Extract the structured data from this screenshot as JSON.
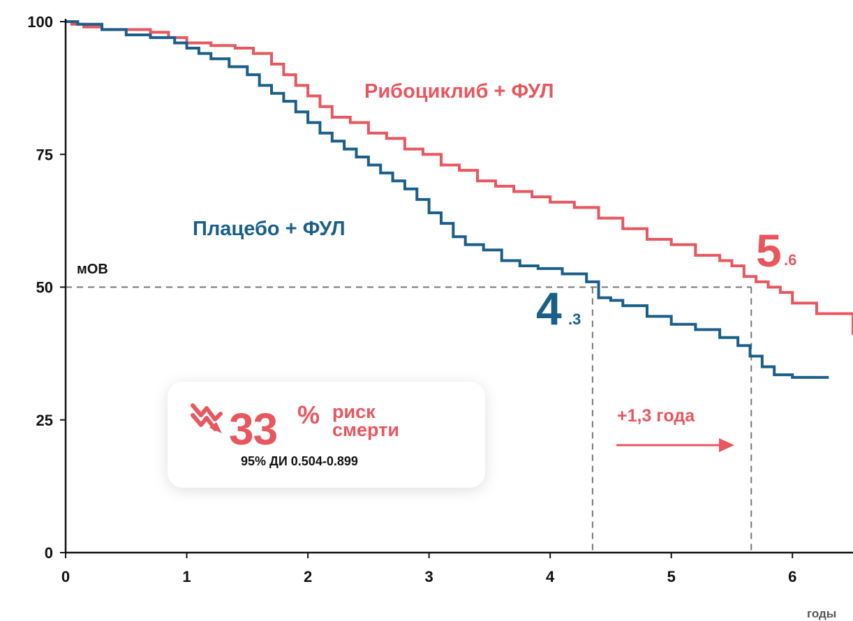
{
  "chart_data": {
    "type": "line",
    "xlabel": "годы",
    "ylabel": "",
    "xlim": [
      0,
      6.5
    ],
    "ylim": [
      0,
      100
    ],
    "xticks": [
      "0",
      "1",
      "2",
      "3",
      "4",
      "5",
      "6"
    ],
    "yticks": [
      "0",
      "25",
      "50",
      "75",
      "100"
    ],
    "series": [
      {
        "name": "Рибоциклиб + ФУЛ",
        "color": "#e8565e",
        "x": [
          0,
          0.05,
          0.15,
          0.3,
          0.5,
          0.7,
          0.85,
          1.0,
          1.2,
          1.4,
          1.55,
          1.7,
          1.8,
          1.9,
          2.0,
          2.1,
          2.2,
          2.35,
          2.5,
          2.65,
          2.8,
          2.95,
          3.1,
          3.25,
          3.4,
          3.55,
          3.7,
          3.85,
          4.0,
          4.2,
          4.4,
          4.6,
          4.8,
          5.0,
          5.2,
          5.4,
          5.5,
          5.6,
          5.7,
          5.8,
          5.9,
          6.0,
          6.2,
          6.5
        ],
        "y": [
          100,
          99.5,
          99,
          98.5,
          98.5,
          98,
          97,
          96,
          95.5,
          95,
          94,
          92,
          90,
          88,
          86,
          84,
          82,
          81,
          79,
          78,
          76,
          75,
          73,
          72,
          70,
          69,
          68,
          67,
          66,
          65,
          63,
          61,
          59,
          58,
          56,
          55,
          54,
          52,
          51,
          50,
          49,
          47,
          45,
          41
        ]
      },
      {
        "name": "Плацебо + ФУЛ",
        "color": "#1a5f8a",
        "x": [
          0,
          0.1,
          0.3,
          0.5,
          0.7,
          0.9,
          1.0,
          1.1,
          1.2,
          1.35,
          1.5,
          1.6,
          1.7,
          1.8,
          1.9,
          2.0,
          2.1,
          2.2,
          2.3,
          2.4,
          2.5,
          2.6,
          2.7,
          2.8,
          2.9,
          3.0,
          3.1,
          3.2,
          3.3,
          3.45,
          3.6,
          3.75,
          3.9,
          4.1,
          4.3,
          4.4,
          4.5,
          4.6,
          4.8,
          5.0,
          5.2,
          5.4,
          5.55,
          5.65,
          5.75,
          5.85,
          6.0,
          6.3
        ],
        "y": [
          100,
          99.5,
          98.5,
          97.5,
          97,
          96,
          95,
          94,
          93,
          91.5,
          90,
          88,
          86.5,
          85,
          83,
          81,
          79,
          77.5,
          76,
          74.5,
          73,
          71.5,
          70,
          68.5,
          66.5,
          64,
          62,
          59.5,
          58,
          57,
          55,
          54,
          53.5,
          52.5,
          51,
          48,
          47.5,
          46.5,
          44.5,
          43,
          42,
          40.5,
          39,
          37,
          35,
          33.5,
          33,
          33
        ]
      }
    ],
    "annotations": {
      "mos_label": "мОВ",
      "median_ribo": {
        "x": 5.66,
        "big": "5",
        "small": ".6"
      },
      "median_placebo": {
        "x": 4.35,
        "big": "4",
        "small": ".3"
      },
      "gain": "+1,3 года",
      "hazard": {
        "value": "33",
        "percent": "%",
        "line1": "риск",
        "line2": "смерти",
        "ci": "95% ДИ 0.504-0.899"
      }
    },
    "colors": {
      "ribo": "#e8565e",
      "placebo": "#1a5f8a",
      "axis": "#111111",
      "guide": "#777777"
    }
  }
}
